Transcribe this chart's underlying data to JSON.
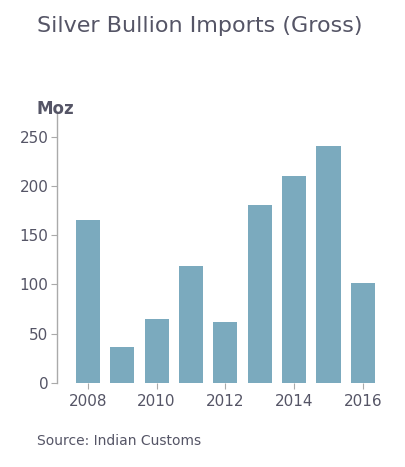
{
  "title": "Silver Bullion Imports (Gross)",
  "ylabel": "Moz",
  "source": "Source: Indian Customs",
  "years": [
    2008,
    2009,
    2010,
    2011,
    2012,
    2013,
    2014,
    2015,
    2016
  ],
  "values": [
    165,
    36,
    65,
    119,
    62,
    181,
    210,
    241,
    101
  ],
  "bar_color": "#7BAABE",
  "ylim": [
    0,
    275
  ],
  "yticks": [
    0,
    50,
    100,
    150,
    200,
    250
  ],
  "xticks": [
    2008,
    2010,
    2012,
    2014,
    2016
  ],
  "title_fontsize": 16,
  "ylabel_fontsize": 12,
  "tick_fontsize": 11,
  "source_fontsize": 10,
  "text_color": "#555566",
  "background_color": "#ffffff",
  "spine_color": "#aaaaaa",
  "bar_width": 0.7,
  "xlim": [
    2007.1,
    2016.9
  ]
}
